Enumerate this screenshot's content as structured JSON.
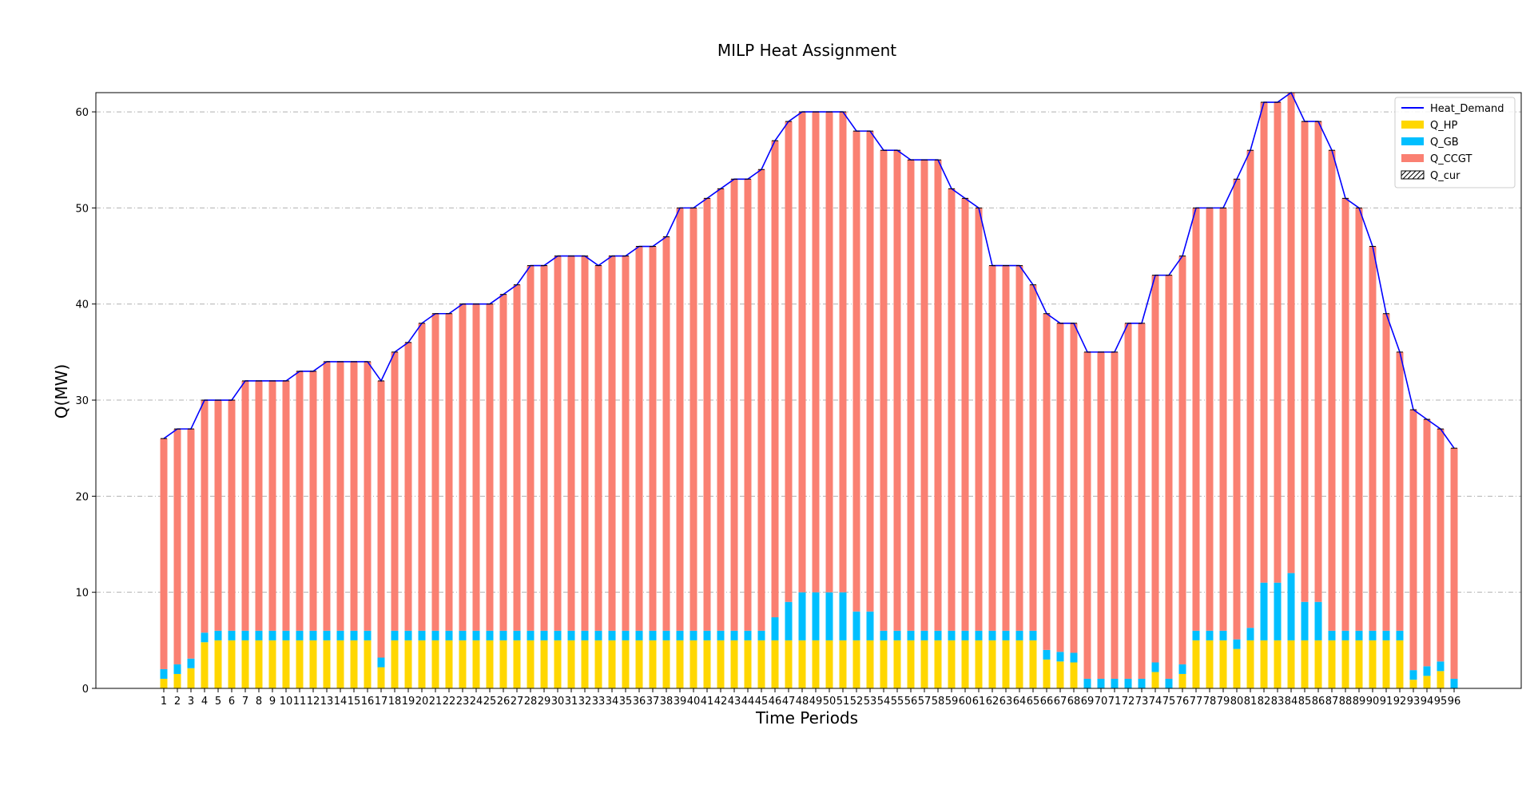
{
  "chart_data": {
    "type": "bar",
    "stacked": true,
    "title": "MILP Heat Assignment",
    "xlabel": "Time Periods",
    "ylabel": "Q(MW)",
    "ylim": [
      0,
      62
    ],
    "yticks": [
      0,
      10,
      20,
      30,
      40,
      50,
      60
    ],
    "grid": "y dash-dot",
    "legend_position": "top-right",
    "categories": [
      "1",
      "2",
      "3",
      "4",
      "5",
      "6",
      "7",
      "8",
      "9",
      "10",
      "11",
      "12",
      "13",
      "14",
      "15",
      "16",
      "17",
      "18",
      "19",
      "20",
      "21",
      "22",
      "23",
      "24",
      "25",
      "26",
      "27",
      "28",
      "29",
      "30",
      "31",
      "32",
      "33",
      "34",
      "35",
      "36",
      "37",
      "38",
      "39",
      "40",
      "41",
      "42",
      "43",
      "44",
      "45",
      "46",
      "47",
      "48",
      "49",
      "50",
      "51",
      "52",
      "53",
      "54",
      "55",
      "56",
      "57",
      "58",
      "59",
      "60",
      "61",
      "62",
      "63",
      "64",
      "65",
      "66",
      "67",
      "68",
      "69",
      "70",
      "71",
      "72",
      "73",
      "74",
      "75",
      "76",
      "77",
      "78",
      "79",
      "80",
      "81",
      "82",
      "83",
      "84",
      "85",
      "86",
      "87",
      "88",
      "89",
      "90",
      "91",
      "92",
      "93",
      "94",
      "95",
      "96"
    ],
    "series": [
      {
        "name": "Heat_Demand",
        "kind": "line",
        "color": "#0000ff",
        "values": [
          26,
          27,
          27,
          30,
          30,
          30,
          32,
          32,
          32,
          32,
          33,
          33,
          34,
          34,
          34,
          34,
          32,
          35,
          36,
          38,
          39,
          39,
          40,
          40,
          40,
          41,
          42,
          44,
          44,
          45,
          45,
          45,
          44,
          45,
          45,
          46,
          46,
          47,
          50,
          50,
          51,
          52,
          53,
          53,
          54,
          57,
          59,
          60,
          60,
          60,
          60,
          58,
          58,
          56,
          56,
          55,
          55,
          55,
          52,
          51,
          50,
          44,
          44,
          44,
          42,
          39,
          38,
          38,
          35,
          35,
          35,
          38,
          38,
          43,
          43,
          45,
          50,
          50,
          50,
          53,
          56,
          61,
          61,
          62,
          59,
          59,
          56,
          51,
          50,
          46,
          39,
          35,
          29,
          28,
          27,
          25
        ]
      },
      {
        "name": "Q_HP",
        "kind": "bar",
        "color": "#ffd700",
        "values": [
          1,
          1.5,
          2.1,
          4.8,
          5,
          5,
          5,
          5,
          5,
          5,
          5,
          5,
          5,
          5,
          5,
          5,
          2.2,
          5,
          5,
          5,
          5,
          5,
          5,
          5,
          5,
          5,
          5,
          5,
          5,
          5,
          5,
          5,
          5,
          5,
          5,
          5,
          5,
          5,
          5,
          5,
          5,
          5,
          5,
          5,
          5,
          5,
          5,
          5,
          5,
          5,
          5,
          5,
          5,
          5,
          5,
          5,
          5,
          5,
          5,
          5,
          5,
          5,
          5,
          5,
          5,
          3,
          2.8,
          2.7,
          0,
          0,
          0,
          0,
          0,
          1.7,
          0,
          1.5,
          5,
          5,
          5,
          4.1,
          5,
          5,
          5,
          5,
          5,
          5,
          5,
          5,
          5,
          5,
          5,
          5,
          0.9,
          1.3,
          1.8,
          0
        ]
      },
      {
        "name": "Q_GB",
        "kind": "bar",
        "color": "#00bfff",
        "values": [
          1,
          1,
          1,
          1,
          1,
          1,
          1,
          1,
          1,
          1,
          1,
          1,
          1,
          1,
          1,
          1,
          1,
          1,
          1,
          1,
          1,
          1,
          1,
          1,
          1,
          1,
          1,
          1,
          1,
          1,
          1,
          1,
          1,
          1,
          1,
          1,
          1,
          1,
          1,
          1,
          1,
          1,
          1,
          1,
          1,
          2.4,
          4,
          5,
          5,
          5,
          5,
          3,
          3,
          1,
          1,
          1,
          1,
          1,
          1,
          1,
          1,
          1,
          1,
          1,
          1,
          1,
          1,
          1,
          1,
          1,
          1,
          1,
          1,
          1,
          1,
          1,
          1,
          1,
          1,
          1,
          1.3,
          6,
          6,
          7,
          4,
          4,
          1,
          1,
          1,
          1,
          1,
          1,
          1,
          1,
          1,
          1
        ]
      },
      {
        "name": "Q_CCGT",
        "kind": "bar",
        "color": "#fa8072",
        "values": [
          24,
          24.5,
          23.9,
          24.2,
          24,
          24,
          26,
          26,
          26,
          26,
          27,
          27,
          28,
          28,
          28,
          28,
          28.8,
          29,
          30,
          32,
          33,
          33,
          34,
          34,
          34,
          35,
          36,
          38,
          38,
          39,
          39,
          39,
          38,
          39,
          39,
          40,
          40,
          41,
          44,
          44,
          45,
          46,
          47,
          47,
          48,
          49.6,
          50,
          50,
          50,
          50,
          50,
          50,
          50,
          50,
          50,
          49,
          49,
          49,
          46,
          45,
          44,
          38,
          38,
          38,
          36,
          35,
          34.2,
          34.3,
          34,
          34,
          34,
          37,
          37,
          40.3,
          42,
          42.5,
          44,
          44,
          44,
          47.9,
          49.7,
          50,
          50,
          50,
          50,
          50,
          50,
          45,
          44,
          40,
          33,
          29,
          27.1,
          25.7,
          24.2,
          24
        ]
      },
      {
        "name": "Q_cur",
        "kind": "bar",
        "hatch": true,
        "color": "#ffffff",
        "values": [
          0,
          0,
          0,
          0,
          0,
          0,
          0,
          0,
          0,
          0,
          0,
          0,
          0,
          0,
          0,
          0,
          0,
          0,
          0,
          0,
          0,
          0,
          0,
          0,
          0,
          0,
          0,
          0,
          0,
          0,
          0,
          0,
          0,
          0,
          0,
          0,
          0,
          0,
          0,
          0,
          0,
          0,
          0,
          0,
          0,
          0,
          0,
          0,
          0,
          0,
          0,
          0,
          0,
          0,
          0,
          0,
          0,
          0,
          0,
          0,
          0,
          0,
          0,
          0,
          0,
          0,
          0,
          0,
          0,
          0,
          0,
          0,
          0,
          0,
          0,
          0,
          0,
          0,
          0,
          0,
          0,
          0,
          0,
          0,
          0,
          0,
          0,
          0,
          0,
          0,
          0,
          0,
          0,
          0,
          0,
          0
        ]
      }
    ]
  }
}
